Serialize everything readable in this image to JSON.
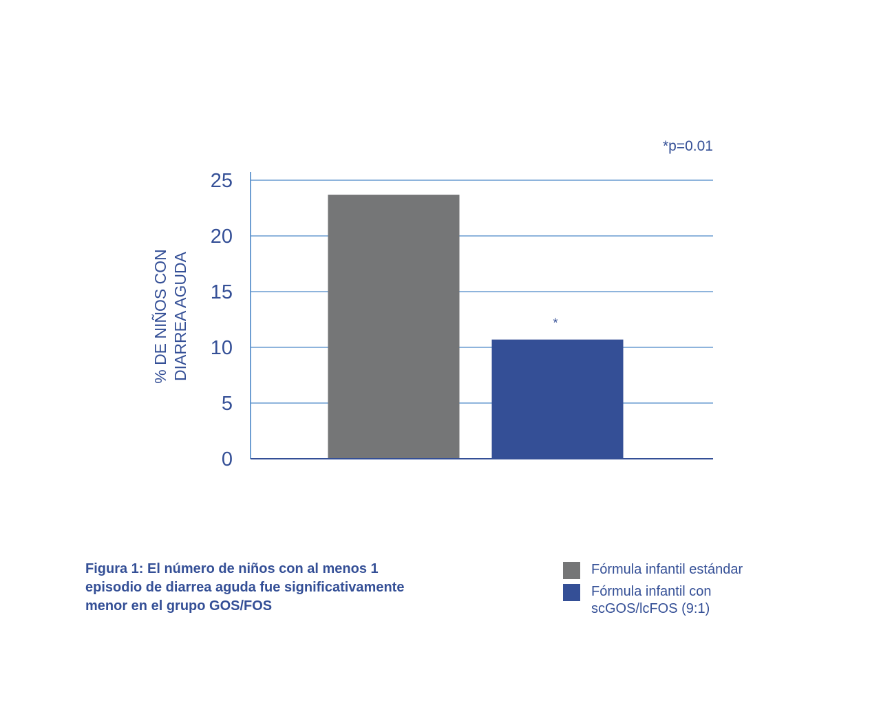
{
  "chart_data": {
    "type": "bar",
    "categories": [
      "Fórmula infantil estándar",
      "Fórmula infantil con scGOS/lcFOS (9:1)"
    ],
    "values": [
      23.7,
      10.7
    ],
    "colors": [
      "#757677",
      "#344f96"
    ],
    "ylabel_lines": [
      "% DE NIÑOS CON",
      "DIARREA AGUDA"
    ],
    "ylim": [
      0,
      25
    ],
    "yticks": [
      "0",
      "5",
      "10",
      "15",
      "20",
      "25"
    ],
    "grid": true,
    "significance_note": "*p=0.01",
    "bar_annotations": [
      "",
      "*"
    ]
  },
  "caption_lines": [
    "Figura 1: El número de niños con al menos 1",
    "episodio de diarrea aguda fue significativamente",
    "menor en el grupo GOS/FOS"
  ],
  "legend": [
    {
      "lines": [
        "Fórmula infantil estándar"
      ],
      "color": "#757677"
    },
    {
      "lines": [
        "Fórmula infantil con",
        "scGOS/lcFOS (9:1)"
      ],
      "color": "#344f96"
    }
  ],
  "theme": {
    "text_color": "#344f96",
    "grid_color": "#4a86c6"
  }
}
